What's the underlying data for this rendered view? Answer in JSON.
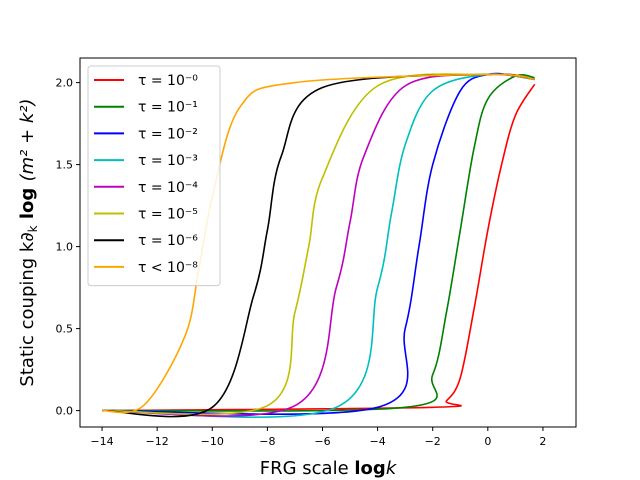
{
  "chart_data": {
    "type": "line",
    "title": "",
    "xlabel_main": "FRG scale ",
    "xlabel_bold": "log",
    "xlabel_tail": "k",
    "ylabel_main": "Static couping  k∂",
    "ylabel_sub": "k",
    "ylabel_bold": " log ",
    "ylabel_tail": "(m² + k²)",
    "xlim": [
      -14.8,
      3.2
    ],
    "ylim": [
      -0.1,
      2.15
    ],
    "xticks": [
      -14,
      -12,
      -10,
      -8,
      -6,
      -4,
      -2,
      0,
      2
    ],
    "xtick_labels": [
      "−14",
      "−12",
      "−10",
      "−8",
      "−6",
      "−4",
      "−2",
      "0",
      "2"
    ],
    "yticks": [
      0.0,
      0.5,
      1.0,
      1.5,
      2.0
    ],
    "ytick_labels": [
      "0.0",
      "0.5",
      "1.0",
      "1.5",
      "2.0"
    ],
    "grid": false,
    "legend_position": "upper-left",
    "series": [
      {
        "name": "τ = 10⁻⁰",
        "color": "#ff0000",
        "x_start": -14,
        "x_end": 1.7,
        "x": [
          -14,
          -2,
          -1.5,
          -1,
          -0.5,
          0,
          0.5,
          1,
          1.7
        ],
        "y": [
          0.0,
          0.02,
          0.06,
          0.2,
          0.62,
          1.1,
          1.5,
          1.8,
          1.99
        ]
      },
      {
        "name": "τ = 10⁻¹",
        "color": "#008000",
        "x_start": -14,
        "x_end": 1.7,
        "x": [
          -14,
          -3,
          -2,
          -1.5,
          -1,
          -0.5,
          0,
          1,
          1.7
        ],
        "y": [
          0.0,
          0.02,
          0.22,
          0.6,
          1.1,
          1.6,
          1.9,
          2.04,
          2.03
        ]
      },
      {
        "name": "τ = 10⁻²",
        "color": "#0000ff",
        "x_start": -14,
        "x_end": 1.7,
        "x": [
          -14,
          -4,
          -3,
          -2.5,
          -2,
          -1,
          0,
          1,
          1.7
        ],
        "y": [
          0.0,
          0.02,
          0.5,
          1.0,
          1.5,
          1.95,
          2.05,
          2.04,
          2.02
        ]
      },
      {
        "name": "τ = 10⁻³",
        "color": "#00bfbf",
        "x_start": -14,
        "x_end": 1.7,
        "x": [
          -14,
          -5.5,
          -4,
          -3.5,
          -3,
          -2,
          0,
          1.7
        ],
        "y": [
          0.0,
          0.02,
          0.75,
          1.2,
          1.62,
          1.95,
          2.05,
          2.02
        ]
      },
      {
        "name": "τ = 10⁻⁴",
        "color": "#bf00bf",
        "x_start": -14,
        "x_end": 1.7,
        "x": [
          -14,
          -7,
          -5.5,
          -5,
          -4.5,
          -3,
          0,
          1.7
        ],
        "y": [
          0.0,
          0.03,
          0.75,
          1.15,
          1.55,
          1.98,
          2.05,
          2.02
        ]
      },
      {
        "name": "τ = 10⁻⁵",
        "color": "#bfbf00",
        "x_start": -14,
        "x_end": 1.7,
        "x": [
          -14,
          -8,
          -7,
          -6.5,
          -6,
          -4,
          0,
          1.7
        ],
        "y": [
          0.0,
          0.03,
          0.6,
          1.0,
          1.42,
          1.98,
          2.05,
          2.02
        ]
      },
      {
        "name": "τ = 10⁻⁶",
        "color": "#000000",
        "x_start": -14,
        "x_end": 1.7,
        "x": [
          -14,
          -10,
          -8.5,
          -8,
          -7.5,
          -6,
          0,
          1.7
        ],
        "y": [
          0.0,
          0.02,
          0.7,
          1.1,
          1.55,
          1.97,
          2.05,
          2.02
        ]
      },
      {
        "name": "τ < 10⁻⁸",
        "color": "#ffa500",
        "x_start": -14,
        "x_end": 1.7,
        "x": [
          -14,
          -12.5,
          -11,
          -10.5,
          -10,
          -9,
          -7,
          0,
          1.7
        ],
        "y": [
          0.0,
          0.03,
          0.45,
          0.85,
          1.3,
          1.85,
          2.0,
          2.05,
          2.02
        ]
      }
    ]
  }
}
